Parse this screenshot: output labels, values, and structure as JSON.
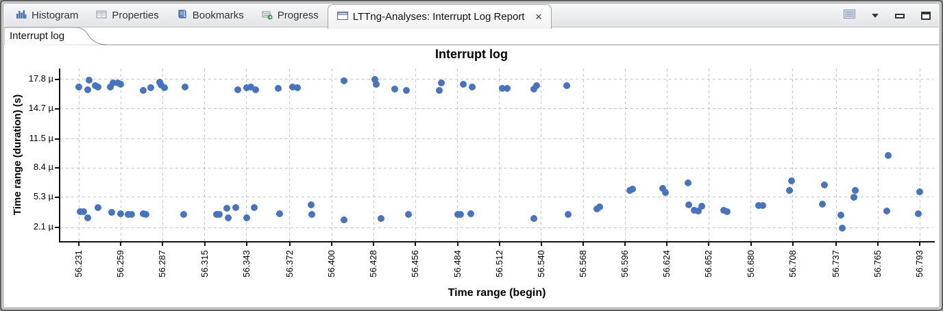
{
  "window": {
    "tabs": [
      {
        "label": "Histogram"
      },
      {
        "label": "Properties"
      },
      {
        "label": "Bookmarks"
      },
      {
        "label": "Progress"
      },
      {
        "label": "LTTng-Analyses: Interrupt Log Report",
        "close_glyph": "✕"
      }
    ],
    "toolbar_icons": [
      "view-list-icon",
      "view-menu-icon",
      "minimize-icon",
      "maximize-icon"
    ]
  },
  "subtab": {
    "label": "Interrupt log"
  },
  "chart_data": {
    "type": "scatter",
    "title": "Interrupt log",
    "xlabel": "Time range (begin)",
    "ylabel": "Time range (duration) (s)",
    "grid": true,
    "legend": "none",
    "point_color": "#4574c4",
    "y_ticks": [
      "2.1 µ",
      "5.3 µ",
      "8.4 µ",
      "11.5 µ",
      "14.7 µ",
      "17.8 µ"
    ],
    "y_tick_values_us": [
      2.1,
      5.3,
      8.4,
      11.5,
      14.7,
      17.8
    ],
    "x_ticks": [
      "56.231",
      "56.259",
      "56.287",
      "56.315",
      "56.343",
      "56.372",
      "56.400",
      "56.428",
      "56.456",
      "56.484",
      "56.512",
      "56.540",
      "56.568",
      "56.596",
      "56.624",
      "56.652",
      "56.680",
      "56.708",
      "56.737",
      "56.765",
      "56.793"
    ],
    "x_tick_values": [
      56.231,
      56.259,
      56.287,
      56.315,
      56.343,
      56.372,
      56.4,
      56.428,
      56.456,
      56.484,
      56.512,
      56.54,
      56.568,
      56.596,
      56.624,
      56.652,
      56.68,
      56.708,
      56.737,
      56.765,
      56.793
    ],
    "xlim": [
      56.2186,
      56.802
    ],
    "ylim_us": [
      0.65,
      18.95
    ],
    "points_time_s_duration_us": [
      [
        56.231,
        17.0
      ],
      [
        56.237,
        16.7
      ],
      [
        56.238,
        17.7
      ],
      [
        56.242,
        17.15
      ],
      [
        56.244,
        17.0
      ],
      [
        56.252,
        17.0
      ],
      [
        56.254,
        17.4
      ],
      [
        56.257,
        17.4
      ],
      [
        56.259,
        17.3
      ],
      [
        56.274,
        16.6
      ],
      [
        56.279,
        16.9
      ],
      [
        56.285,
        17.5
      ],
      [
        56.286,
        17.2
      ],
      [
        56.288,
        16.9
      ],
      [
        56.302,
        17.0
      ],
      [
        56.337,
        16.7
      ],
      [
        56.343,
        16.9
      ],
      [
        56.346,
        17.0
      ],
      [
        56.349,
        16.7
      ],
      [
        56.364,
        16.85
      ],
      [
        56.374,
        17.0
      ],
      [
        56.377,
        16.9
      ],
      [
        56.408,
        17.65
      ],
      [
        56.429,
        17.8
      ],
      [
        56.4295,
        17.3
      ],
      [
        56.442,
        16.8
      ],
      [
        56.45,
        16.6
      ],
      [
        56.472,
        16.65
      ],
      [
        56.473,
        17.4
      ],
      [
        56.488,
        17.3
      ],
      [
        56.494,
        17.0
      ],
      [
        56.514,
        16.85
      ],
      [
        56.517,
        16.85
      ],
      [
        56.535,
        16.8
      ],
      [
        56.537,
        17.1
      ],
      [
        56.557,
        17.15
      ],
      [
        56.772,
        9.7
      ],
      [
        56.232,
        3.8
      ],
      [
        56.234,
        3.75
      ],
      [
        56.237,
        3.1
      ],
      [
        56.244,
        4.2
      ],
      [
        56.253,
        3.7
      ],
      [
        56.259,
        3.55
      ],
      [
        56.264,
        3.5
      ],
      [
        56.266,
        3.45
      ],
      [
        56.274,
        3.55
      ],
      [
        56.276,
        3.5
      ],
      [
        56.301,
        3.5
      ],
      [
        56.323,
        3.5
      ],
      [
        56.325,
        3.45
      ],
      [
        56.33,
        4.15
      ],
      [
        56.331,
        3.1
      ],
      [
        56.336,
        4.2
      ],
      [
        56.343,
        3.1
      ],
      [
        56.348,
        4.2
      ],
      [
        56.365,
        3.55
      ],
      [
        56.386,
        4.5
      ],
      [
        56.3865,
        3.5
      ],
      [
        56.408,
        2.9
      ],
      [
        56.433,
        3.05
      ],
      [
        56.451,
        3.5
      ],
      [
        56.484,
        3.5
      ],
      [
        56.486,
        3.45
      ],
      [
        56.493,
        3.55
      ],
      [
        56.535,
        3.05
      ],
      [
        56.558,
        3.5
      ],
      [
        56.577,
        4.05
      ],
      [
        56.579,
        4.25
      ],
      [
        56.599,
        6.05
      ],
      [
        56.601,
        6.15
      ],
      [
        56.621,
        6.25
      ],
      [
        56.623,
        5.8
      ],
      [
        56.638,
        6.8
      ],
      [
        56.6385,
        4.5
      ],
      [
        56.642,
        3.95
      ],
      [
        56.645,
        3.85
      ],
      [
        56.647,
        4.35
      ],
      [
        56.662,
        3.95
      ],
      [
        56.664,
        3.75
      ],
      [
        56.685,
        4.4
      ],
      [
        56.688,
        4.4
      ],
      [
        56.706,
        6.0
      ],
      [
        56.707,
        7.05
      ],
      [
        56.728,
        4.55
      ],
      [
        56.729,
        6.6
      ],
      [
        56.74,
        3.4
      ],
      [
        56.741,
        2.0
      ],
      [
        56.749,
        5.3
      ],
      [
        56.75,
        6.0
      ],
      [
        56.771,
        3.85
      ],
      [
        56.792,
        3.55
      ],
      [
        56.793,
        5.9
      ]
    ]
  }
}
